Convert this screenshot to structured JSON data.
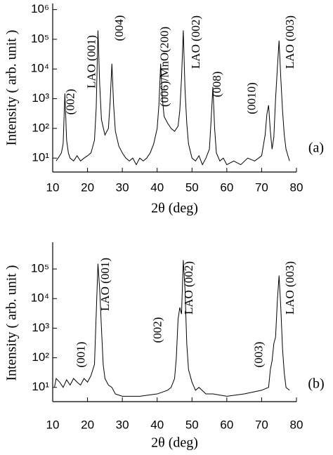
{
  "chart_data": [
    {
      "type": "line",
      "xlabel": "2θ (deg)",
      "ylabel": "Intensity ( arb. unit )",
      "panel_label": "(a)",
      "log_y": true,
      "color": "#000000",
      "xlim": [
        10,
        80
      ],
      "xticks": [
        10,
        20,
        30,
        40,
        50,
        60,
        70,
        80
      ],
      "ylim": [
        3.4,
        1600000
      ],
      "yticks": [
        {
          "value": 10,
          "label": "10¹"
        },
        {
          "value": 100,
          "label": "10²"
        },
        {
          "value": 1000,
          "label": "10³"
        },
        {
          "value": 10000,
          "label": "10⁴"
        },
        {
          "value": 100000,
          "label": "10⁵"
        },
        {
          "value": 1000000,
          "label": "10⁶"
        }
      ],
      "annotations": [
        "(002)",
        "LAO (001)",
        "(004)",
        "(006)/MnO(200)",
        "LAO (002)",
        "(008)",
        "(0010)",
        "LAO (003)"
      ],
      "x": [
        11,
        12,
        12.5,
        13,
        13.5,
        14,
        14.5,
        15,
        16,
        17,
        18,
        19,
        20,
        21,
        22,
        22.5,
        23,
        23.5,
        24,
        25,
        26,
        26.5,
        27,
        27.5,
        28,
        29,
        30,
        31,
        32,
        33,
        34,
        35,
        36,
        37,
        38,
        39,
        40,
        40.5,
        41,
        41.5,
        42,
        43,
        44,
        45,
        46,
        46.5,
        47,
        47.5,
        48,
        48.5,
        49,
        50,
        51,
        52,
        53,
        54,
        55,
        55.5,
        56,
        56.5,
        57,
        58,
        59,
        60,
        62,
        64,
        66,
        68,
        70,
        71,
        71.5,
        72,
        72.5,
        73,
        73.5,
        74,
        74.5,
        75,
        75.5,
        76,
        76.5,
        77,
        78
      ],
      "values": [
        8,
        12,
        15,
        30,
        1500,
        40,
        15,
        10,
        8,
        12,
        8,
        10,
        12,
        15,
        40,
        500,
        200000,
        3000,
        200,
        60,
        100,
        800,
        15000,
        600,
        80,
        25,
        15,
        10,
        8,
        10,
        6,
        10,
        8,
        10,
        15,
        30,
        100,
        600,
        15000,
        1000,
        250,
        150,
        100,
        80,
        120,
        400,
        5000,
        200000,
        2000,
        150,
        30,
        10,
        8,
        12,
        6,
        10,
        20,
        200,
        2500,
        100,
        15,
        8,
        10,
        6,
        8,
        6,
        10,
        8,
        12,
        60,
        300,
        600,
        80,
        20,
        50,
        1000,
        10000,
        90000,
        5000,
        400,
        60,
        20,
        8
      ]
    },
    {
      "type": "line",
      "xlabel": "2θ (deg)",
      "ylabel": "Intensity ( arb. unit )",
      "panel_label": "(b)",
      "log_y": true,
      "color": "#000000",
      "xlim": [
        10,
        80
      ],
      "xticks": [
        10,
        20,
        30,
        40,
        50,
        60,
        70,
        80
      ],
      "ylim": [
        3.3,
        800000
      ],
      "yticks": [
        {
          "value": 10,
          "label": "10¹"
        },
        {
          "value": 100,
          "label": "10²"
        },
        {
          "value": 1000,
          "label": "10³"
        },
        {
          "value": 10000,
          "label": "10⁴"
        },
        {
          "value": 100000,
          "label": "10⁵"
        }
      ],
      "annotations": [
        "(001)",
        "LAO (001)",
        "(002)",
        "LAO (002)",
        "(003)",
        "LAO (003)"
      ],
      "x": [
        10.5,
        11,
        12,
        13,
        14,
        15,
        16,
        17,
        18,
        19,
        20,
        21,
        22,
        22.5,
        23,
        23.5,
        24,
        24.5,
        25,
        26,
        27,
        28,
        30,
        35,
        40,
        43,
        44,
        45,
        45.5,
        46,
        46.5,
        47,
        47.5,
        48,
        48.5,
        49,
        50,
        51,
        52,
        54,
        56,
        60,
        65,
        70,
        72,
        72.5,
        73,
        73.5,
        74,
        74.5,
        75,
        75.5,
        76,
        76.5,
        77,
        78
      ],
      "values": [
        10,
        20,
        15,
        10,
        18,
        12,
        20,
        15,
        12,
        20,
        15,
        25,
        60,
        3000,
        150000,
        20000,
        1000,
        60,
        20,
        12,
        10,
        6,
        5,
        5,
        6,
        8,
        10,
        20,
        100,
        2000,
        5000,
        3000,
        200000,
        20000,
        300,
        40,
        15,
        8,
        10,
        6,
        6,
        5,
        6,
        8,
        10,
        40,
        80,
        300,
        500,
        8000,
        60000,
        5000,
        200,
        30,
        10,
        8
      ]
    }
  ]
}
